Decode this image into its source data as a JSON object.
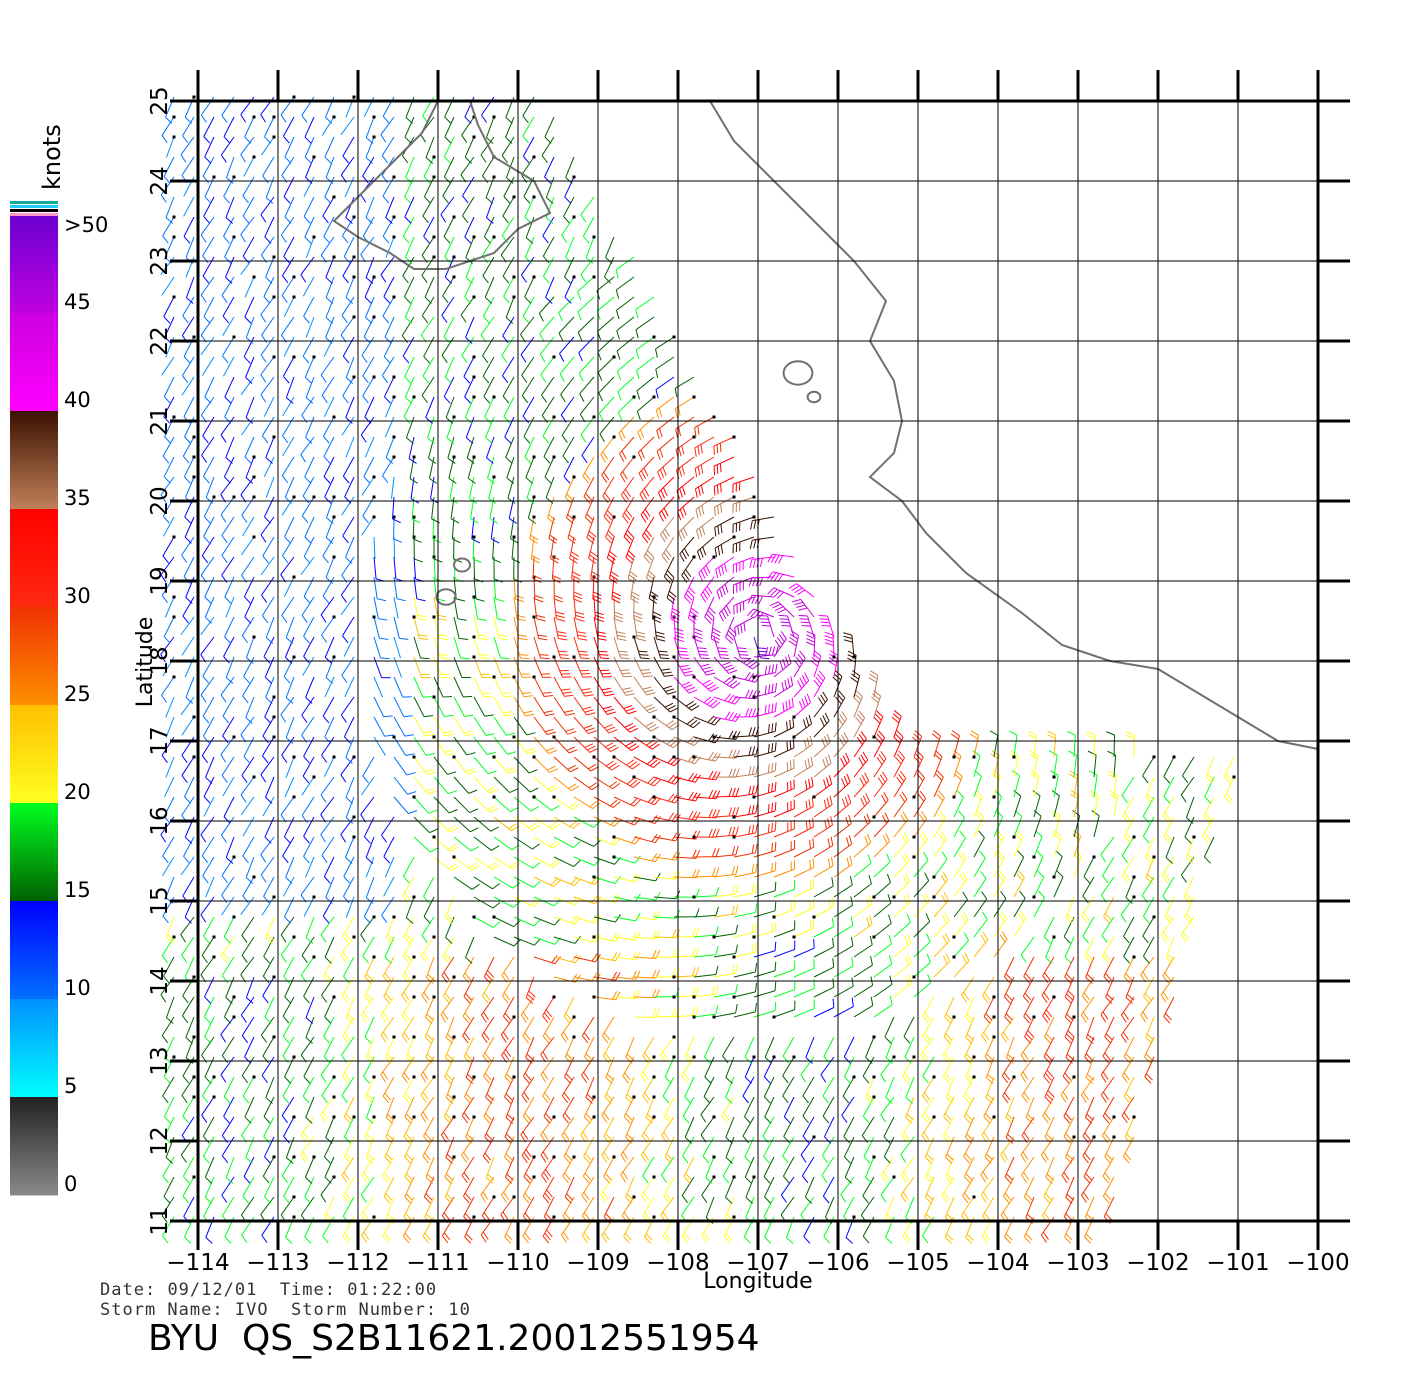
{
  "legend": {
    "unit": "knots",
    "labels": [
      ">50",
      "45",
      "40",
      "35",
      "30",
      "25",
      "20",
      "15",
      "10",
      "5",
      "0"
    ],
    "bands": [
      {
        "range": [
          45,
          50
        ],
        "top": "#6a00d0",
        "bottom": "#c000e0"
      },
      {
        "range": [
          40,
          45
        ],
        "top": "#cc00e0",
        "bottom": "#ff00ff"
      },
      {
        "range": [
          35,
          40
        ],
        "top": "#3a1000",
        "bottom": "#c08058"
      },
      {
        "range": [
          30,
          35
        ],
        "top": "#ff0000",
        "bottom": "#ff2a10"
      },
      {
        "range": [
          25,
          30
        ],
        "top": "#f03000",
        "bottom": "#ff9000"
      },
      {
        "range": [
          20,
          25
        ],
        "top": "#ffc000",
        "bottom": "#ffff20"
      },
      {
        "range": [
          15,
          20
        ],
        "top": "#00ff20",
        "bottom": "#006000"
      },
      {
        "range": [
          10,
          15
        ],
        "top": "#0000ff",
        "bottom": "#0070ff"
      },
      {
        "range": [
          5,
          10
        ],
        "top": "#0090ff",
        "bottom": "#00ffff"
      },
      {
        "range": [
          0,
          5
        ],
        "top": "#222222",
        "bottom": "#8a8a8a"
      }
    ]
  },
  "axes": {
    "xlabel": "Longitude",
    "ylabel": "Latitude",
    "lon_range": [
      -114,
      -100
    ],
    "lat_range": [
      11,
      25
    ],
    "lon_ticks": [
      "−114",
      "−113",
      "−112",
      "−111",
      "−110",
      "−109",
      "−108",
      "−107",
      "−106",
      "−105",
      "−104",
      "−103",
      "−102",
      "−101",
      "−100"
    ],
    "lat_ticks": [
      "11",
      "12",
      "13",
      "14",
      "15",
      "16",
      "17",
      "18",
      "19",
      "20",
      "21",
      "22",
      "23",
      "24",
      "25"
    ]
  },
  "footer": {
    "date_label": "Date:",
    "date": "09/12/01",
    "time_label": "Time:",
    "time": "01:22:00",
    "storm_name_label": "Storm Name:",
    "storm_name": "IVO",
    "storm_number_label": "Storm Number:",
    "storm_number": "10",
    "pass_label": "BYU  QS_S2B11621.20012551954"
  },
  "colors": {
    "coast": "#707070",
    "grid": "#000000"
  },
  "map": {
    "storm_center": {
      "lon": -107.0,
      "lat": 18.3
    },
    "coast": [
      [
        -105.3,
        21.5
      ],
      [
        -105.2,
        21.0
      ],
      [
        -105.3,
        20.6
      ],
      [
        -105.6,
        20.3
      ],
      [
        -105.2,
        20.0
      ],
      [
        -104.9,
        19.6
      ],
      [
        -104.4,
        19.1
      ],
      [
        -103.7,
        18.6
      ],
      [
        -103.2,
        18.2
      ],
      [
        -102.6,
        18.0
      ],
      [
        -102.0,
        17.9
      ],
      [
        -101.5,
        17.6
      ],
      [
        -101.0,
        17.3
      ],
      [
        -100.5,
        17.0
      ],
      [
        -100.0,
        16.9
      ]
    ],
    "coast_north": [
      [
        -105.4,
        22.5
      ],
      [
        -105.6,
        22.0
      ],
      [
        -105.3,
        21.5
      ]
    ],
    "coast_mainland_north": [
      [
        -107.6,
        25.0
      ],
      [
        -107.3,
        24.5
      ],
      [
        -106.8,
        24.0
      ],
      [
        -106.3,
        23.5
      ],
      [
        -105.8,
        23.0
      ],
      [
        -105.4,
        22.5
      ]
    ],
    "baja": [
      [
        -111.0,
        25.0
      ],
      [
        -111.2,
        24.6
      ],
      [
        -111.6,
        24.2
      ],
      [
        -112.0,
        23.8
      ],
      [
        -112.3,
        23.5
      ],
      [
        -112.0,
        23.3
      ],
      [
        -111.6,
        23.1
      ],
      [
        -111.3,
        22.9
      ],
      [
        -110.9,
        22.9
      ],
      [
        -110.3,
        23.1
      ],
      [
        -110.0,
        23.4
      ],
      [
        -109.6,
        23.6
      ],
      [
        -109.8,
        24.0
      ],
      [
        -110.3,
        24.3
      ],
      [
        -110.5,
        24.7
      ],
      [
        -110.6,
        25.0
      ]
    ],
    "islands": [
      {
        "center": [
          -106.5,
          21.6
        ],
        "r": 0.18
      },
      {
        "center": [
          -106.3,
          21.3
        ],
        "r": 0.08
      },
      {
        "center": [
          -110.7,
          19.2
        ],
        "r": 0.1
      },
      {
        "center": [
          -110.9,
          18.8
        ],
        "r": 0.12
      }
    ]
  }
}
